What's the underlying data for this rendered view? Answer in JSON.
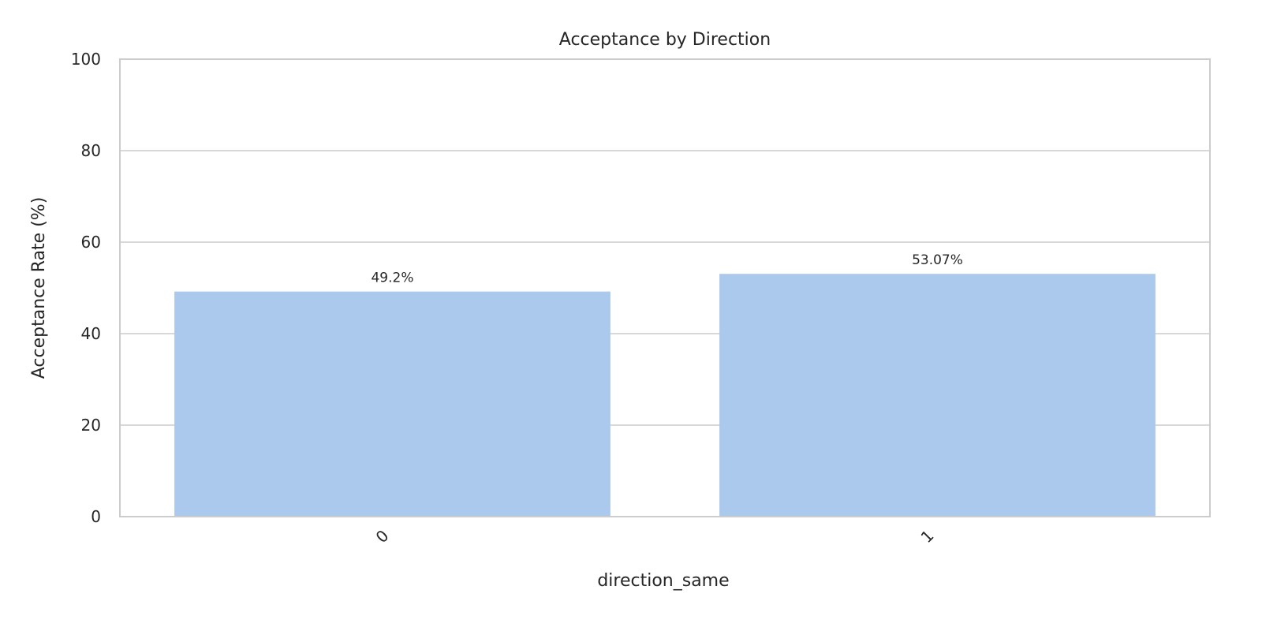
{
  "chart_data": {
    "type": "bar",
    "title": "Acceptance by Direction",
    "xlabel": "direction_same",
    "ylabel": "Acceptance Rate (%)",
    "categories": [
      "0",
      "1"
    ],
    "values": [
      49.2,
      53.07
    ],
    "data_labels": [
      "49.2%",
      "53.07%"
    ],
    "ylim": [
      0,
      100
    ],
    "yticks": [
      0,
      20,
      40,
      60,
      80,
      100
    ],
    "ytick_labels": [
      "0",
      "20",
      "40",
      "60",
      "80",
      "100"
    ],
    "grid": "horizontal",
    "bar_color": "#abc9ec"
  }
}
